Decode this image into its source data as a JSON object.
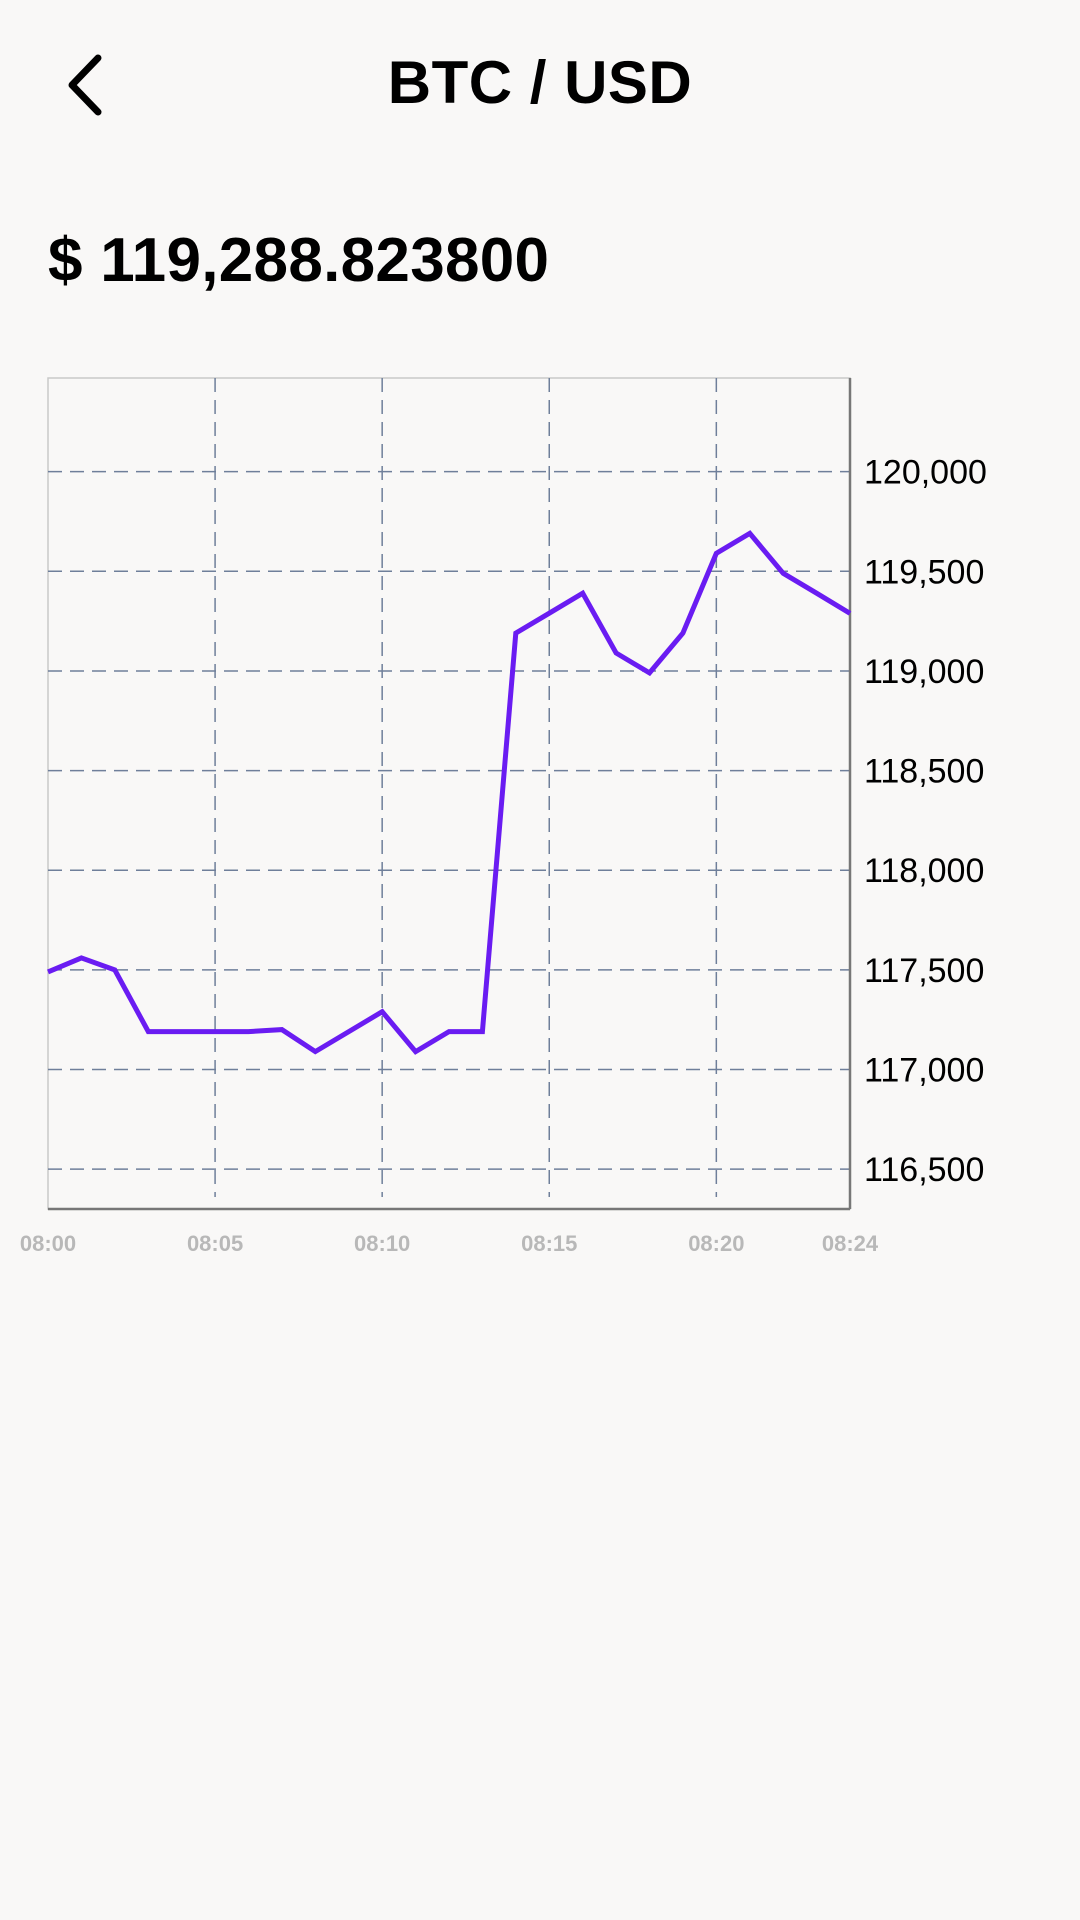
{
  "header": {
    "title": "BTC / USD",
    "back_icon": "chevron-left-icon"
  },
  "price": {
    "display": "$ 119,288.823800"
  },
  "colors": {
    "background": "#f9f8f7",
    "line": "#6a1cf2",
    "grid": "#6f7f9a",
    "axis_text_y": "#000000",
    "axis_text_x": "#b8b8b8"
  },
  "chart_data": {
    "type": "line",
    "title": "",
    "xlabel": "",
    "ylabel": "",
    "x_ticks": [
      "08:00",
      "08:05",
      "08:10",
      "08:15",
      "08:20",
      "08:24"
    ],
    "y_ticks": [
      120000,
      119500,
      119000,
      118500,
      118000,
      117500,
      117000,
      116500
    ],
    "y_tick_labels": [
      "120,000",
      "119,500",
      "119,000",
      "118,500",
      "118,000",
      "117,500",
      "117,000",
      "116,500"
    ],
    "ylim": [
      116300,
      120470
    ],
    "xlim": [
      "08:00",
      "08:24"
    ],
    "grid": true,
    "y_axis_position": "right",
    "series": [
      {
        "x": [
          "08:00",
          "08:01",
          "08:02",
          "08:03",
          "08:04",
          "08:05",
          "08:06",
          "08:07",
          "08:08",
          "08:09",
          "08:10",
          "08:11",
          "08:12",
          "08:13",
          "08:14",
          "08:15",
          "08:16",
          "08:17",
          "08:18",
          "08:19",
          "08:20",
          "08:21",
          "08:22",
          "08:23",
          "08:24"
        ],
        "values": [
          117490,
          117560,
          117500,
          117190,
          117190,
          117190,
          117190,
          117200,
          117090,
          117190,
          117290,
          117090,
          117190,
          117190,
          119190,
          119290,
          119390,
          119090,
          118990,
          119190,
          119590,
          119690,
          119490,
          119390,
          119289
        ]
      }
    ]
  }
}
